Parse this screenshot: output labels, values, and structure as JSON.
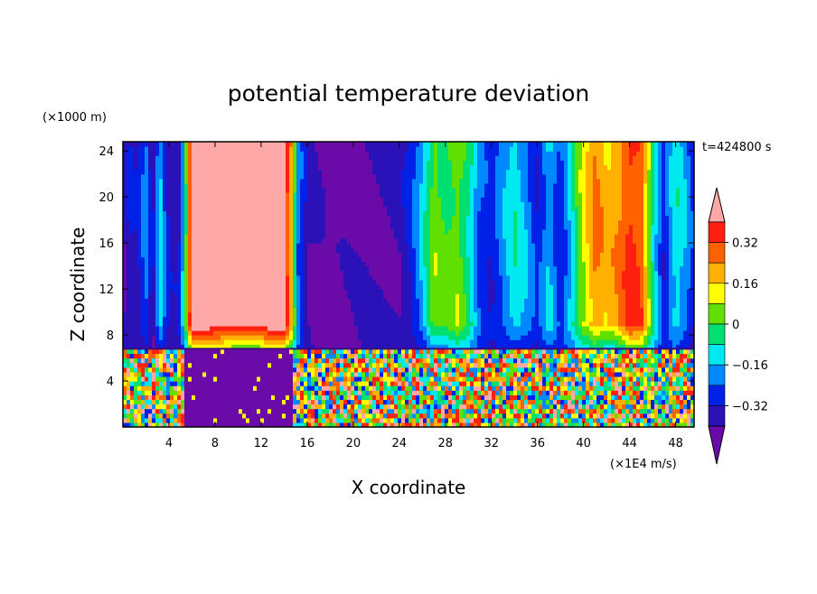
{
  "chart_data": {
    "type": "heatmap",
    "title": "potential temperature deviation",
    "xlabel": "X coordinate",
    "ylabel": "Z coordinate",
    "x_unit": "(×1E4 m/s)",
    "y_unit": "(×1000 m)",
    "time_label": "t=424800 s",
    "xlim": [
      0,
      49.6
    ],
    "ylim": [
      0,
      24.8
    ],
    "x_ticks": [
      "4",
      "8",
      "12",
      "16",
      "20",
      "24",
      "28",
      "32",
      "36",
      "40",
      "44",
      "48"
    ],
    "x_tick_values": [
      4,
      8,
      12,
      16,
      20,
      24,
      28,
      32,
      36,
      40,
      44,
      48
    ],
    "y_ticks": [
      "4",
      "8",
      "12",
      "16",
      "20",
      "24"
    ],
    "y_tick_values": [
      4,
      8,
      12,
      16,
      20,
      24
    ],
    "colorbar": {
      "levels": [
        -0.48,
        -0.4,
        -0.32,
        -0.24,
        -0.16,
        -0.08,
        0,
        0.08,
        0.16,
        0.24,
        0.32,
        0.4
      ],
      "tick_labels": [
        "0.32",
        "0.16",
        "0",
        "−0.16",
        "−0.32"
      ],
      "tick_values": [
        0.32,
        0.16,
        0,
        -0.16,
        -0.32
      ],
      "colors": [
        "#6a0aa8",
        "#2a12b8",
        "#0022e8",
        "#0088ff",
        "#00e8f0",
        "#00e070",
        "#60e000",
        "#ffff00",
        "#ffb000",
        "#ff6000",
        "#ff2010",
        "#ffa8a8"
      ]
    },
    "columns": [
      {
        "x": 0.0,
        "upper": -0.4
      },
      {
        "x": 0.6,
        "upper": -0.32
      },
      {
        "x": 1.2,
        "upper": -0.35
      },
      {
        "x": 2.0,
        "upper": -0.2
      },
      {
        "x": 2.6,
        "upper": -0.38
      },
      {
        "x": 3.2,
        "upper": -0.1
      },
      {
        "x": 3.8,
        "upper": -0.3
      },
      {
        "x": 4.4,
        "upper": -0.38
      },
      {
        "x": 5.0,
        "upper": -0.3
      },
      {
        "x": 5.6,
        "upper": 0.1
      },
      {
        "x": 6.0,
        "upper": 0.45
      },
      {
        "x": 10.0,
        "upper": 0.45
      },
      {
        "x": 14.0,
        "upper": 0.45
      },
      {
        "x": 14.6,
        "upper": 0.2
      },
      {
        "x": 15.2,
        "upper": -0.2
      },
      {
        "x": 16.0,
        "upper": -0.38
      },
      {
        "x": 18.0,
        "upper": -0.45
      },
      {
        "x": 20.0,
        "upper": -0.42
      },
      {
        "x": 22.0,
        "upper": -0.4
      },
      {
        "x": 24.0,
        "upper": -0.38
      },
      {
        "x": 25.0,
        "upper": -0.3
      },
      {
        "x": 26.0,
        "upper": -0.15
      },
      {
        "x": 27.0,
        "upper": 0.05
      },
      {
        "x": 28.0,
        "upper": 0.0
      },
      {
        "x": 29.0,
        "upper": 0.05
      },
      {
        "x": 30.0,
        "upper": -0.05
      },
      {
        "x": 31.0,
        "upper": -0.25
      },
      {
        "x": 32.0,
        "upper": -0.3
      },
      {
        "x": 33.0,
        "upper": -0.2
      },
      {
        "x": 34.0,
        "upper": -0.1
      },
      {
        "x": 35.0,
        "upper": -0.18
      },
      {
        "x": 36.0,
        "upper": -0.3
      },
      {
        "x": 37.0,
        "upper": -0.15
      },
      {
        "x": 38.0,
        "upper": -0.3
      },
      {
        "x": 39.0,
        "upper": -0.1
      },
      {
        "x": 40.0,
        "upper": 0.1
      },
      {
        "x": 41.0,
        "upper": 0.25
      },
      {
        "x": 42.0,
        "upper": 0.18
      },
      {
        "x": 43.0,
        "upper": 0.22
      },
      {
        "x": 44.0,
        "upper": 0.35
      },
      {
        "x": 45.0,
        "upper": 0.3
      },
      {
        "x": 46.0,
        "upper": -0.05
      },
      {
        "x": 47.0,
        "upper": -0.3
      },
      {
        "x": 48.0,
        "upper": -0.1
      },
      {
        "x": 49.0,
        "upper": -0.2
      },
      {
        "x": 49.6,
        "upper": -0.3
      }
    ],
    "lower_layer": {
      "z_top": 6.8,
      "quiet_region": [
        5.2,
        14.8
      ],
      "quiet_value": -0.45
    }
  }
}
